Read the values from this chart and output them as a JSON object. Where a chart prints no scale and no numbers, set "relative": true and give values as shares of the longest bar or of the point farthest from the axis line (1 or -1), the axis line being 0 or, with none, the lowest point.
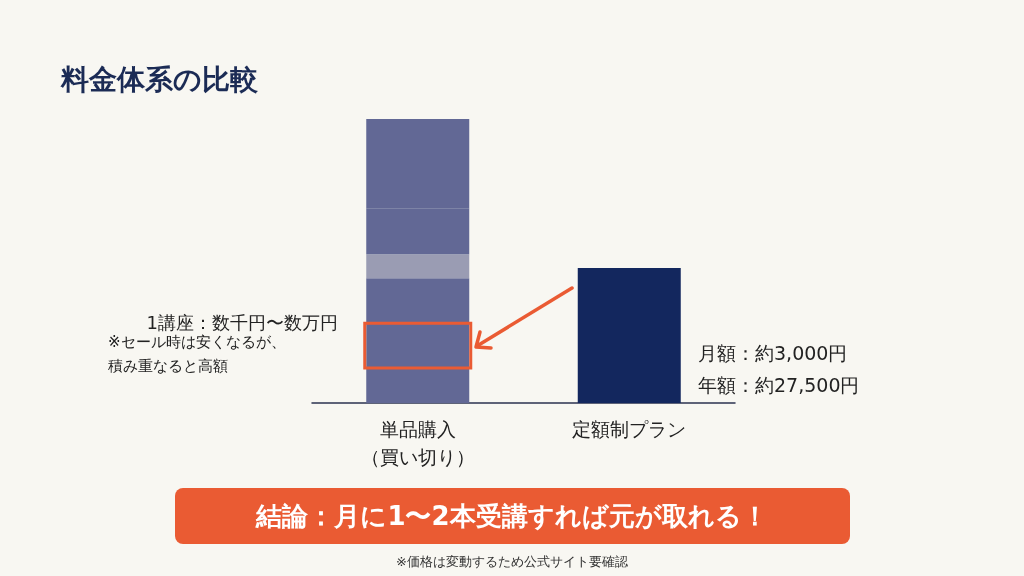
{
  "chart_data": {
    "type": "bar",
    "title": "料金体系の比較",
    "relative": true,
    "stacked": true,
    "categories": [
      "単品購入（買い切り）",
      "定額制プラン"
    ],
    "series": [
      {
        "color": "#626895",
        "values": [
          0.123,
          null
        ]
      },
      {
        "color": "#626895",
        "values": [
          0.158,
          null
        ]
      },
      {
        "color": "#626895",
        "values": [
          0.158,
          null
        ]
      },
      {
        "color": "#9a9cb3",
        "values": [
          0.085,
          null
        ]
      },
      {
        "color": "#626895",
        "values": [
          0.162,
          null
        ]
      },
      {
        "color": "#626895",
        "values": [
          0.12,
          null
        ]
      },
      {
        "color": "#626895",
        "values": [
          0.194,
          null
        ]
      },
      {
        "color": "#13275e",
        "values": [
          null,
          0.475
        ]
      }
    ],
    "annotations": [
      "1講座：数千円〜数万円",
      "※セール時は安くなるが、積み重なると高額",
      "月額：約3,000円",
      "年額：約27,500円",
      "結論：月に1〜2本受講すれば元が取れる！",
      "※価格は変動するため公式サイト要確認"
    ]
  }
}
